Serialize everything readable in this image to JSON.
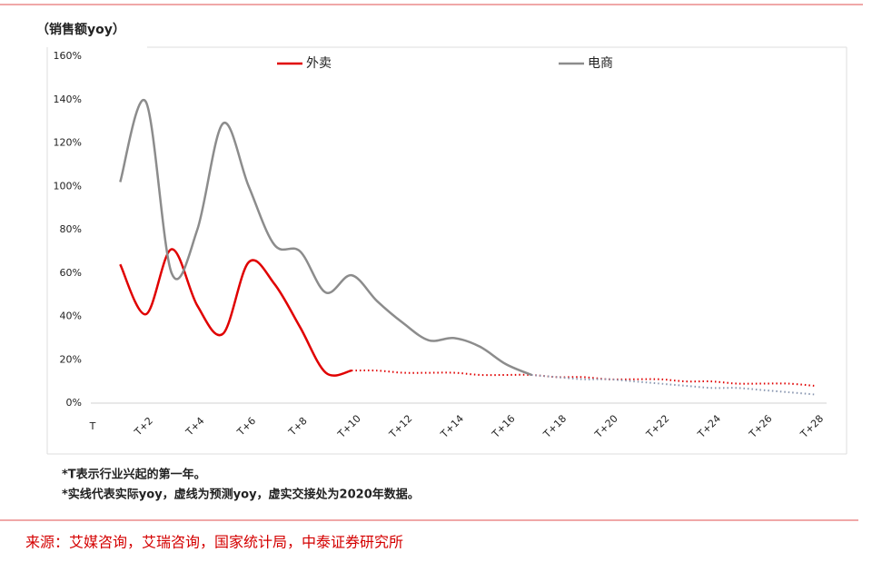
{
  "chart_data": {
    "type": "line",
    "subtitle": "（销售额yoy）",
    "categories": [
      "T",
      null,
      "T+2",
      null,
      "T+4",
      null,
      "T+6",
      null,
      "T+8",
      null,
      "T+10",
      null,
      "T+12",
      null,
      "T+14",
      null,
      "T+16",
      null,
      "T+18",
      null,
      "T+20",
      null,
      "T+22",
      null,
      "T+24",
      null,
      "T+26",
      null,
      "T+28"
    ],
    "series": [
      {
        "name": "外卖",
        "color": "#e00000",
        "forecast_color": "#e00000",
        "values": [
          null,
          64,
          41,
          71,
          45,
          32,
          65,
          55,
          35,
          14,
          15,
          null,
          null,
          null,
          null,
          null,
          null,
          null,
          null,
          null,
          null,
          null,
          null,
          null,
          null,
          null,
          null,
          null,
          null
        ],
        "forecast": [
          null,
          null,
          null,
          null,
          null,
          null,
          null,
          null,
          null,
          null,
          15,
          15,
          14,
          14,
          14,
          13,
          13,
          13,
          12,
          12,
          11,
          11,
          11,
          10,
          10,
          9,
          9,
          9,
          8
        ]
      },
      {
        "name": "电商",
        "color": "#8c8c8c",
        "forecast_color": "#8896b0",
        "values": [
          null,
          102,
          139,
          60,
          80,
          129,
          100,
          73,
          70,
          51,
          59,
          47,
          37,
          29,
          30,
          26,
          18,
          13,
          null,
          null,
          null,
          null,
          null,
          null,
          null,
          null,
          null,
          null,
          null
        ],
        "forecast": [
          null,
          null,
          null,
          null,
          null,
          null,
          null,
          null,
          null,
          null,
          null,
          null,
          null,
          null,
          null,
          null,
          null,
          13,
          12,
          11,
          11,
          10,
          9,
          8,
          7,
          7,
          6,
          5,
          4
        ]
      }
    ],
    "ylim": [
      0,
      160
    ],
    "yticks": [
      {
        "value": 0,
        "label": "0%"
      },
      {
        "value": 20,
        "label": "20%"
      },
      {
        "value": 40,
        "label": "40%"
      },
      {
        "value": 60,
        "label": "60%"
      },
      {
        "value": 80,
        "label": "80%"
      },
      {
        "value": 100,
        "label": "100%"
      },
      {
        "value": 120,
        "label": "120%"
      },
      {
        "value": 140,
        "label": "140%"
      },
      {
        "value": 160,
        "label": "160%"
      }
    ],
    "notes": [
      "*T表示行业兴起的第一年。",
      "*实线代表实际yoy，虚线为预测yoy，虚实交接处为2020年数据。"
    ],
    "source": "来源：艾媒咨询，艾瑞咨询，国家统计局，中泰证券研究所"
  }
}
